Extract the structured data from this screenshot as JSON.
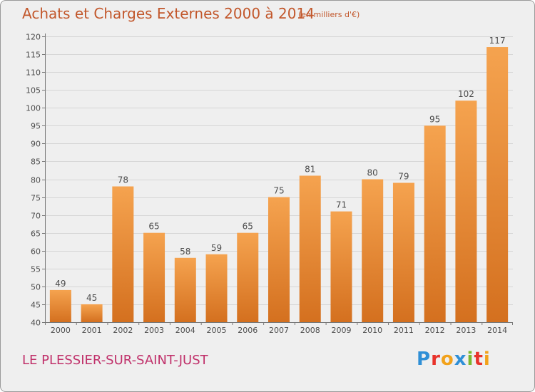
{
  "header": {
    "title": "Achats et Charges Externes 2000 à 2014",
    "subtitle": "(en milliers d'€)"
  },
  "footer": {
    "commune": "LE PLESSIER-SUR-SAINT-JUST",
    "logo_text": "Proxiti",
    "logo_letters": [
      "P",
      "r",
      "o",
      "x",
      "i",
      "t",
      "i"
    ],
    "logo_colors": [
      "#2f8fd6",
      "#e8332b",
      "#f2a21b",
      "#2f8fd6",
      "#7bb82e",
      "#e8332b",
      "#f2a21b"
    ]
  },
  "chart_data": {
    "type": "bar",
    "title": "Achats et Charges Externes 2000 à 2014",
    "subtitle": "(en milliers d'€)",
    "categories": [
      "2000",
      "2001",
      "2002",
      "2003",
      "2004",
      "2005",
      "2006",
      "2007",
      "2008",
      "2009",
      "2010",
      "2011",
      "2012",
      "2013",
      "2014"
    ],
    "values": [
      49,
      45,
      78,
      65,
      58,
      59,
      65,
      75,
      81,
      71,
      80,
      79,
      95,
      102,
      117
    ],
    "ylim": [
      40,
      120
    ],
    "yticks": [
      40,
      45,
      50,
      55,
      60,
      65,
      70,
      75,
      80,
      85,
      90,
      95,
      100,
      105,
      110,
      115,
      120
    ],
    "grid": true,
    "bar_color_top": "#f5a34f",
    "bar_color_bottom": "#d4701f",
    "text_color": "#4d4d4d"
  }
}
